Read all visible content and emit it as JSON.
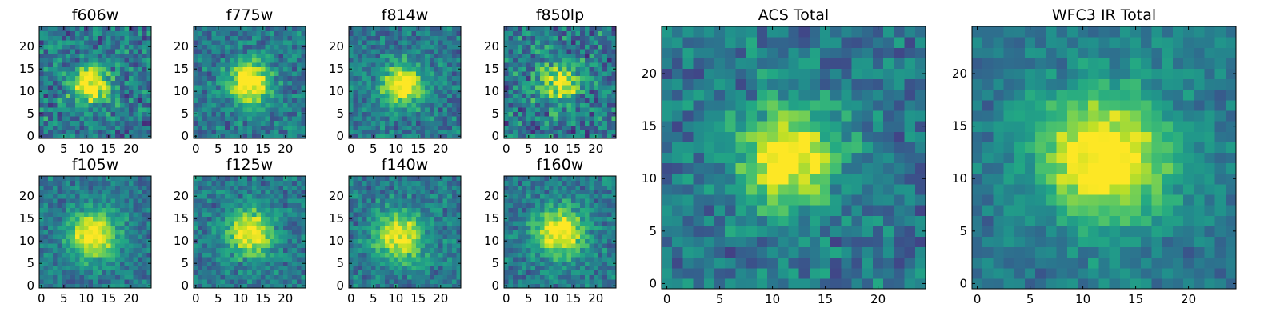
{
  "figure": {
    "description_colormap": "viridis"
  },
  "chart_data": [
    {
      "type": "heatmap",
      "title": "f606w",
      "size": 25,
      "xticks": [
        0,
        5,
        10,
        15,
        20
      ],
      "yticks": [
        0,
        5,
        10,
        15,
        20
      ],
      "center": [
        11,
        11.5
      ],
      "sigma": 3.0,
      "peak": 0.72,
      "noise": 0.42,
      "seed": 11
    },
    {
      "type": "heatmap",
      "title": "f775w",
      "size": 25,
      "xticks": [
        0,
        5,
        10,
        15,
        20
      ],
      "yticks": [
        0,
        5,
        10,
        15,
        20
      ],
      "center": [
        12,
        12
      ],
      "sigma": 3.3,
      "peak": 0.72,
      "noise": 0.32,
      "seed": 23
    },
    {
      "type": "heatmap",
      "title": "f814w",
      "size": 25,
      "xticks": [
        0,
        5,
        10,
        15,
        20
      ],
      "yticks": [
        0,
        5,
        10,
        15,
        20
      ],
      "center": [
        11.5,
        11.5
      ],
      "sigma": 3.2,
      "peak": 0.7,
      "noise": 0.32,
      "seed": 37
    },
    {
      "type": "heatmap",
      "title": "f850lp",
      "size": 25,
      "xticks": [
        0,
        5,
        10,
        15,
        20
      ],
      "yticks": [
        0,
        5,
        10,
        15,
        20
      ],
      "center": [
        12,
        12
      ],
      "sigma": 3.2,
      "peak": 0.55,
      "noise": 0.45,
      "seed": 41
    },
    {
      "type": "heatmap",
      "title": "f105w",
      "size": 25,
      "xticks": [
        0,
        5,
        10,
        15,
        20
      ],
      "yticks": [
        0,
        5,
        10,
        15,
        20
      ],
      "center": [
        11.5,
        11.5
      ],
      "sigma": 3.6,
      "peak": 0.72,
      "noise": 0.28,
      "seed": 53
    },
    {
      "type": "heatmap",
      "title": "f125w",
      "size": 25,
      "xticks": [
        0,
        5,
        10,
        15,
        20
      ],
      "yticks": [
        0,
        5,
        10,
        15,
        20
      ],
      "center": [
        12,
        12
      ],
      "sigma": 3.6,
      "peak": 0.68,
      "noise": 0.3,
      "seed": 67
    },
    {
      "type": "heatmap",
      "title": "f140w",
      "size": 25,
      "xticks": [
        0,
        5,
        10,
        15,
        20
      ],
      "yticks": [
        0,
        5,
        10,
        15,
        20
      ],
      "center": [
        11,
        11
      ],
      "sigma": 3.9,
      "peak": 0.62,
      "noise": 0.3,
      "seed": 79
    },
    {
      "type": "heatmap",
      "title": "f160w",
      "size": 25,
      "xticks": [
        0,
        5,
        10,
        15,
        20
      ],
      "yticks": [
        0,
        5,
        10,
        15,
        20
      ],
      "center": [
        12,
        12
      ],
      "sigma": 3.8,
      "peak": 0.7,
      "noise": 0.3,
      "seed": 83
    },
    {
      "type": "heatmap",
      "title": "ACS Total",
      "size": 25,
      "xticks": [
        0,
        5,
        10,
        15,
        20
      ],
      "yticks": [
        0,
        5,
        10,
        15,
        20
      ],
      "center": [
        11.5,
        12
      ],
      "sigma": 3.2,
      "peak": 0.72,
      "noise": 0.32,
      "seed": 97
    },
    {
      "type": "heatmap",
      "title": "WFC3 IR Total",
      "size": 25,
      "xticks": [
        0,
        5,
        10,
        15,
        20
      ],
      "yticks": [
        0,
        5,
        10,
        15,
        20
      ],
      "center": [
        12,
        12
      ],
      "sigma": 4.3,
      "peak": 0.72,
      "noise": 0.22,
      "seed": 101
    }
  ]
}
